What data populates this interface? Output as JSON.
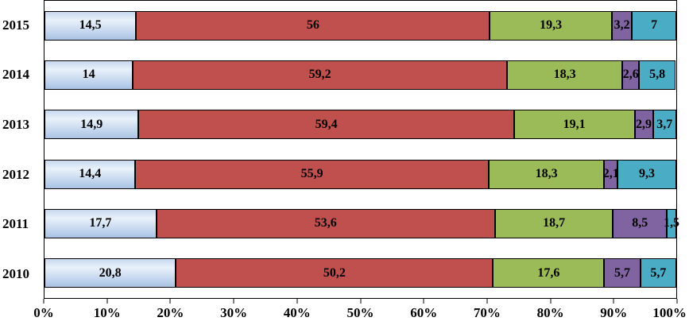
{
  "chart_data": {
    "type": "bar",
    "stacked": true,
    "orientation": "horizontal",
    "unit": "%",
    "title": "",
    "xlabel": "",
    "ylabel": "",
    "xlim": [
      0,
      100
    ],
    "grid": false,
    "legend": "none",
    "decimal_separator": ",",
    "categories": [
      "2015",
      "2014",
      "2013",
      "2012",
      "2011",
      "2010"
    ],
    "series": [
      {
        "name": "segment-1-blue",
        "color": "gradient-blue",
        "gradient": {
          "top": "#c7d8ef",
          "mid": "#e9f1fa",
          "bottom": "#a9c2e4"
        },
        "values": [
          14.5,
          14,
          14.9,
          14.4,
          17.7,
          20.8
        ],
        "labels": [
          "14,5",
          "14",
          "14,9",
          "14,4",
          "17,7",
          "20,8"
        ]
      },
      {
        "name": "segment-2-red",
        "color": "#c0504d",
        "values": [
          56,
          59.2,
          59.4,
          55.9,
          53.6,
          50.2
        ],
        "labels": [
          "56",
          "59,2",
          "59,4",
          "55,9",
          "53,6",
          "50,2"
        ]
      },
      {
        "name": "segment-3-green",
        "color": "#9bbb59",
        "values": [
          19.3,
          18.3,
          19.1,
          18.3,
          18.7,
          17.6
        ],
        "labels": [
          "19,3",
          "18,3",
          "19,1",
          "18,3",
          "18,7",
          "17,6"
        ]
      },
      {
        "name": "segment-4-purple",
        "color": "#8064a2",
        "values": [
          3.2,
          2.6,
          2.9,
          2.1,
          8.5,
          5.7
        ],
        "labels": [
          "3,2",
          "2,6",
          "2,9",
          "2,1",
          "8,5",
          "5,7"
        ]
      },
      {
        "name": "segment-5-teal",
        "color": "#4bacc6",
        "values": [
          7,
          5.8,
          3.7,
          9.3,
          1.5,
          5.7
        ],
        "labels": [
          "7",
          "5,8",
          "3,7",
          "9,3",
          "1,5",
          "5,7"
        ]
      }
    ],
    "x_ticks": [
      "0%",
      "10%",
      "20%",
      "30%",
      "40%",
      "50%",
      "60%",
      "70%",
      "80%",
      "90%",
      "100%"
    ]
  }
}
